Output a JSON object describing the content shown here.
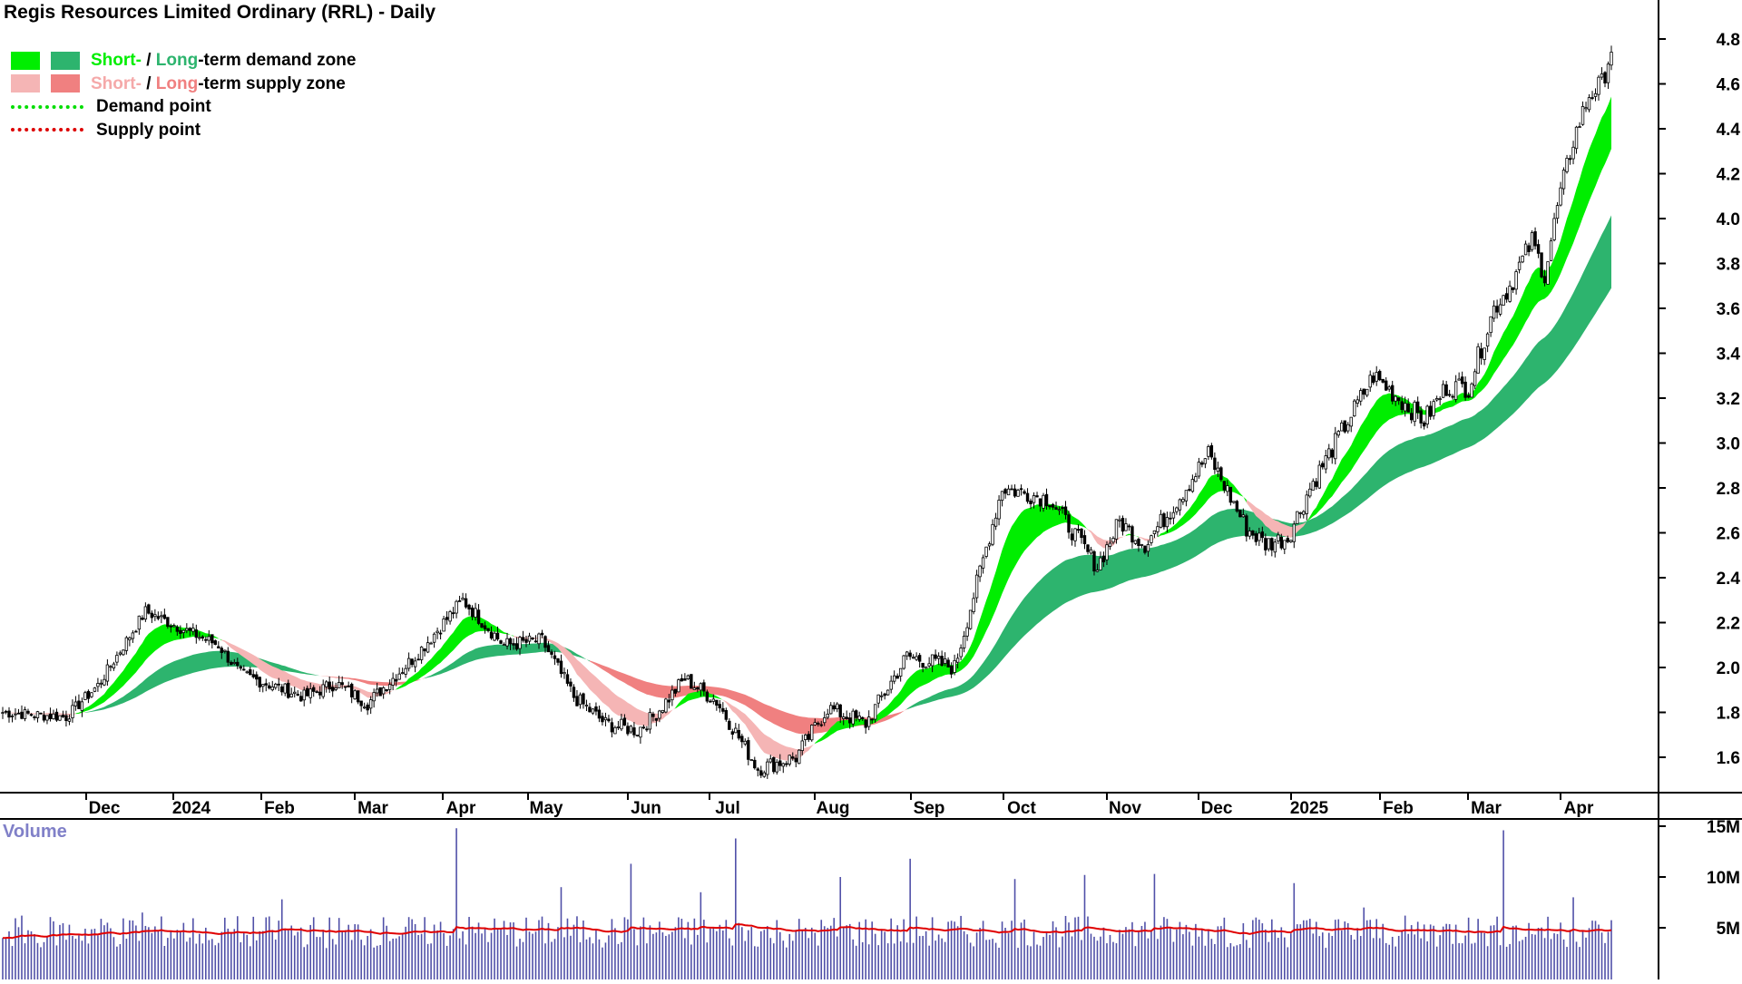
{
  "title": "Regis Resources Limited Ordinary (RRL) - Daily",
  "legend": {
    "demand_short": "Short-",
    "demand_sep": " / ",
    "demand_long": "Long",
    "demand_rest": "-term demand zone",
    "supply_short": "Short-",
    "supply_sep": " / ",
    "supply_long": "Long",
    "supply_rest": "-term supply zone",
    "demand_point": "Demand point",
    "supply_point": "Supply point"
  },
  "colors": {
    "short_demand": "#00ee00",
    "long_demand": "#2db46e",
    "short_supply": "#f5b5b5",
    "long_supply": "#f08080",
    "zone_orange": "#ff7f2a",
    "volume_bar": "#5050a8",
    "volume_ma": "#e00000",
    "demand_point": "#00dd00",
    "supply_point": "#dd0000"
  },
  "chart_data": [
    {
      "type": "candlestick",
      "title": "Regis Resources Limited Ordinary (RRL) - Daily",
      "x_ticks": [
        "Dec",
        "2024",
        "Feb",
        "Mar",
        "Apr",
        "May",
        "Jun",
        "Jul",
        "Aug",
        "Sep",
        "Oct",
        "Nov",
        "Dec",
        "2025",
        "Feb",
        "Mar",
        "Apr"
      ],
      "y_ticks": [
        "1.6",
        "1.8",
        "2.0",
        "2.2",
        "2.4",
        "2.6",
        "2.8",
        "3.0",
        "3.2",
        "3.4",
        "3.6",
        "3.8",
        "4.0",
        "4.2",
        "4.4",
        "4.6",
        "4.8"
      ],
      "ylim": [
        1.45,
        4.83
      ],
      "close_path": {
        "x_index": [
          0,
          20,
          30,
          45,
          60,
          68,
          75,
          95,
          105,
          115,
          130,
          145,
          158,
          170,
          180,
          190,
          200,
          205,
          215,
          225,
          238,
          250,
          260,
          272,
          285,
          300,
          315,
          330,
          345,
          352,
          360,
          368,
          380,
          392,
          398,
          405,
          412,
          422,
          432,
          440,
          448,
          455,
          462,
          470,
          475,
          482,
          486,
          490,
          495,
          500,
          504,
          507
        ],
        "price": [
          1.8,
          1.78,
          1.92,
          2.25,
          2.15,
          2.1,
          1.97,
          1.87,
          1.93,
          1.84,
          2.05,
          2.3,
          2.1,
          2.12,
          1.87,
          1.75,
          1.72,
          1.78,
          1.95,
          1.85,
          1.55,
          1.6,
          1.82,
          1.75,
          2.05,
          2.0,
          2.8,
          2.75,
          2.45,
          2.65,
          2.55,
          2.7,
          2.95,
          2.62,
          2.55,
          2.58,
          2.8,
          3.05,
          3.3,
          3.2,
          3.1,
          3.25,
          3.25,
          3.6,
          3.7,
          3.9,
          3.75,
          4.05,
          4.35,
          4.55,
          4.6,
          4.76
        ]
      },
      "series": [
        {
          "name": "Short-term demand zone"
        },
        {
          "name": "Long-term demand zone"
        },
        {
          "name": "Short-term supply zone"
        },
        {
          "name": "Long-term supply zone"
        }
      ]
    },
    {
      "type": "bar",
      "title": "Volume",
      "y_ticks": [
        "5M",
        "10M",
        "15M"
      ],
      "ylim": [
        0,
        16
      ],
      "unit": "millions of shares",
      "values_sample": [
        4.0,
        3.5,
        4.2,
        5.5,
        6.5,
        4.8,
        3.9,
        4.3,
        7.8,
        4.1,
        3.8,
        5.2,
        4.4,
        14.8,
        4.5,
        6.0,
        9.0,
        4.8,
        11.3,
        4.2,
        8.5,
        13.8,
        4.0,
        5.0,
        10.0,
        4.4,
        11.8,
        3.6,
        5.0,
        9.8,
        4.3,
        10.2,
        4.8,
        10.3,
        4.6,
        6.0,
        5.8,
        9.4,
        4.5,
        7.0,
        4.2,
        5.2,
        6.0,
        14.6,
        5.0,
        8.0,
        4.6,
        6.5
      ],
      "moving_average_approx": 4.5
    }
  ]
}
